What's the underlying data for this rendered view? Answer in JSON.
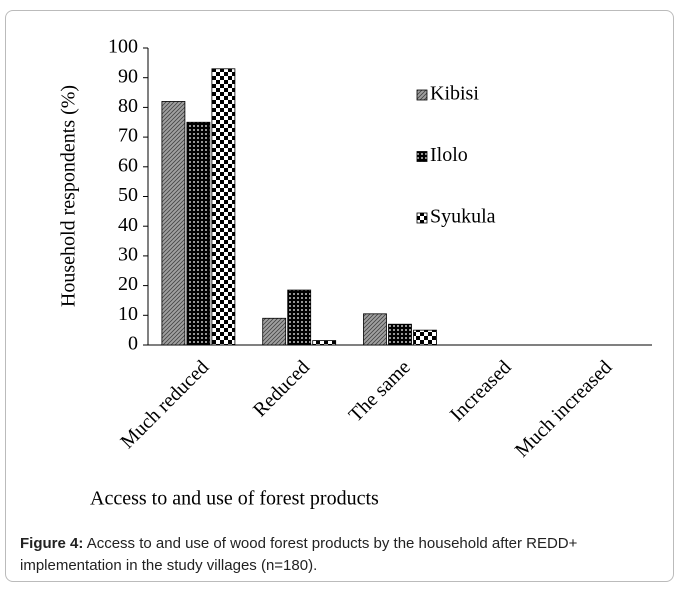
{
  "chart_data": {
    "type": "bar",
    "categories": [
      "Much reduced",
      "Reduced",
      "The same",
      "Increased",
      "Much increased"
    ],
    "series": [
      {
        "name": "Kibisi",
        "color": "#a0a0a0",
        "values": [
          82,
          9,
          10.5,
          0,
          0
        ]
      },
      {
        "name": "Ilolo",
        "color": "#000000",
        "values": [
          75,
          18.5,
          7,
          0,
          0
        ]
      },
      {
        "name": "Syukula",
        "color": "#ffffff",
        "values": [
          93,
          1.5,
          5,
          0,
          0
        ]
      }
    ],
    "ylim": [
      0,
      100
    ],
    "yticks": [
      0,
      10,
      20,
      30,
      40,
      50,
      60,
      70,
      80,
      90,
      100
    ],
    "ylabel": "Household respondents (%)",
    "xlabel": "Access to and use of forest products",
    "legend": "upper right",
    "grid": false
  },
  "caption": {
    "label": "Figure 4:",
    "text": "Access to and use of wood forest products by the household after REDD+ implementation in the study villages (n=180)."
  }
}
